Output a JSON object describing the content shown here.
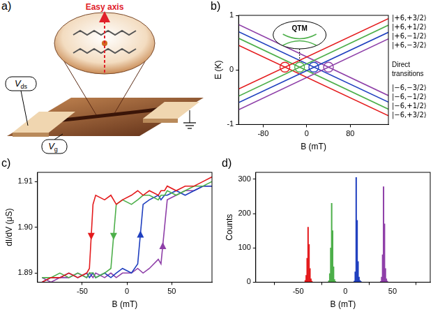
{
  "diagram": {
    "panel_label": "a)",
    "inset_label": "Easy axis",
    "terminals": [
      {
        "text": "V",
        "subscript": "ds"
      },
      {
        "text": "V",
        "subscript": "g"
      }
    ]
  },
  "chart_data": [
    {
      "panel_label": "b)",
      "type": "line",
      "x_label": "B (mT)",
      "y_label": "E (K)",
      "xlim": [
        -125,
        150
      ],
      "xticks": [
        -80,
        0,
        80
      ],
      "ylim": [
        -1,
        1
      ],
      "yticks": [
        -1,
        0,
        1
      ],
      "grid": false,
      "x": [
        -125,
        150
      ],
      "series": [
        {
          "name": "|+6,+3/2⟩",
          "color": "#e41a1c",
          "values": [
            -0.35,
            0.94
          ]
        },
        {
          "name": "|+6,+1/2⟩",
          "color": "#4daf4a",
          "values": [
            -0.48,
            0.82
          ]
        },
        {
          "name": "|+6,−1/2⟩",
          "color": "#1f3fbf",
          "values": [
            -0.6,
            0.69
          ]
        },
        {
          "name": "|+6,−3/2⟩",
          "color": "#8e3fa8",
          "values": [
            -0.73,
            0.57
          ]
        },
        {
          "name": "|−6,−3/2⟩",
          "color": "#8e3fa8",
          "values": [
            0.83,
            -0.47
          ]
        },
        {
          "name": "|−6,−1/2⟩",
          "color": "#1f3fbf",
          "values": [
            0.7,
            -0.59
          ]
        },
        {
          "name": "|−6,+1/2⟩",
          "color": "#4daf4a",
          "values": [
            0.58,
            -0.72
          ]
        },
        {
          "name": "|−6,+3/2⟩",
          "color": "#e41a1c",
          "values": [
            0.45,
            -0.84
          ]
        }
      ],
      "crossings": {
        "x": [
          -40,
          -13,
          13,
          40
        ],
        "y": [
          0.05,
          0.05,
          0.05,
          0.05
        ],
        "colors": [
          "#e41a1c",
          "#4daf4a",
          "#1f3fbf",
          "#8e3fa8"
        ]
      },
      "annotations": [
        "QTM",
        "Direct transitions"
      ]
    },
    {
      "panel_label": "c)",
      "type": "line",
      "x_label": "B (mT)",
      "y_label": "dI/dV (μS)",
      "xlim": [
        -100,
        95
      ],
      "xticks": [
        -50,
        0,
        50
      ],
      "ylim": [
        1.888,
        1.912
      ],
      "yticks": [
        1.89,
        {
          "value": 1.9,
          "label": "1.90"
        },
        1.91
      ],
      "grid": false,
      "x": [
        -95,
        -85,
        -75,
        -65,
        -55,
        -45,
        -42,
        -38,
        -35,
        -25,
        -18,
        -12,
        -5,
        5,
        12,
        18,
        25,
        35,
        38,
        42,
        45,
        55,
        65,
        75,
        85,
        95
      ],
      "series": [
        {
          "color": "#e41a1c",
          "marker": "arrow-down",
          "values": [
            1.888,
            1.889,
            1.889,
            1.89,
            1.889,
            1.89,
            1.891,
            1.905,
            1.907,
            1.906,
            1.907,
            1.905,
            1.906,
            1.907,
            1.908,
            1.907,
            1.908,
            1.907,
            1.908,
            1.908,
            1.909,
            1.908,
            1.909,
            1.909,
            1.91,
            1.911
          ]
        },
        {
          "color": "#4daf4a",
          "marker": "arrow-down",
          "values": [
            1.889,
            1.889,
            1.89,
            1.889,
            1.89,
            1.889,
            1.89,
            1.89,
            1.889,
            1.89,
            1.891,
            1.905,
            1.906,
            1.905,
            1.906,
            1.907,
            1.907,
            1.906,
            1.907,
            1.907,
            1.908,
            1.907,
            1.908,
            1.909,
            1.909,
            1.91
          ]
        },
        {
          "color": "#1f3fbf",
          "marker": "arrow-up",
          "values": [
            1.888,
            1.889,
            1.889,
            1.89,
            1.889,
            1.89,
            1.889,
            1.89,
            1.889,
            1.89,
            1.889,
            1.89,
            1.891,
            1.89,
            1.892,
            1.905,
            1.906,
            1.907,
            1.906,
            1.907,
            1.907,
            1.908,
            1.907,
            1.908,
            1.909,
            1.909
          ]
        },
        {
          "color": "#8e3fa8",
          "marker": "arrow-up",
          "values": [
            1.889,
            1.888,
            1.889,
            1.889,
            1.89,
            1.889,
            1.89,
            1.889,
            1.89,
            1.889,
            1.89,
            1.889,
            1.89,
            1.89,
            1.891,
            1.89,
            1.891,
            1.893,
            1.892,
            1.9,
            1.906,
            1.907,
            1.908,
            1.908,
            1.909,
            1.909
          ]
        }
      ]
    },
    {
      "panel_label": "d)",
      "type": "histogram",
      "x_label": "B (mT)",
      "y_label": "Counts",
      "xlim": [
        -95,
        90
      ],
      "xticks": [
        -50,
        0,
        50
      ],
      "ylim": [
        0,
        320
      ],
      "yticks": [
        0,
        100,
        200,
        300
      ],
      "grid": false,
      "series": [
        {
          "color": "#e41a1c",
          "bins": [
            -43,
            -42,
            -41,
            -40,
            -39,
            -38,
            -37,
            -36,
            -35
          ],
          "values": [
            5,
            20,
            70,
            160,
            110,
            40,
            10,
            3
          ]
        },
        {
          "color": "#4daf4a",
          "bins": [
            -18,
            -17,
            -16,
            -15,
            -14,
            -13,
            -12,
            -11,
            -10
          ],
          "values": [
            4,
            25,
            100,
            230,
            150,
            45,
            8,
            2
          ]
        },
        {
          "color": "#1f3fbf",
          "bins": [
            9,
            10,
            11,
            12,
            13,
            14,
            15,
            16,
            17
          ],
          "values": [
            3,
            30,
            305,
            180,
            60,
            15,
            5,
            2
          ]
        },
        {
          "color": "#8e3fa8",
          "bins": [
            37,
            38,
            39,
            40,
            41,
            42,
            43,
            44,
            45
          ],
          "values": [
            2,
            15,
            80,
            278,
            170,
            40,
            10,
            3
          ]
        }
      ]
    }
  ]
}
